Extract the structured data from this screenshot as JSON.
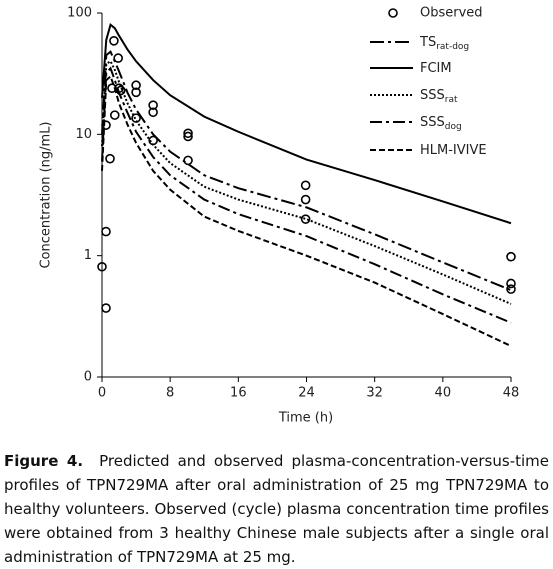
{
  "chart_data": {
    "type": "line",
    "log_y": true,
    "color": "#000000",
    "xlabel": "Time (h)",
    "ylabel": "Concentration (ng/mL)",
    "xlim": [
      0,
      48
    ],
    "xticks": [
      0,
      8,
      16,
      24,
      32,
      40,
      48
    ],
    "ylim": [
      0.1,
      100
    ],
    "yticks": [
      {
        "value": 0.1,
        "label": "0"
      },
      1,
      10,
      100
    ],
    "observed": {
      "name": "Observed",
      "x": [
        0,
        0.47,
        0.47,
        0.47,
        0.94,
        1.17,
        1.4,
        1.5,
        1.9,
        2.0,
        2.2,
        4.0,
        4.0,
        4.0,
        6.0,
        6.0,
        6.0,
        10.1,
        10.1,
        10.1,
        23.9,
        23.9,
        23.9,
        48,
        48,
        48
      ],
      "y": [
        0.81,
        1.58,
        0.37,
        11.9,
        6.3,
        24,
        59,
        14.4,
        42.5,
        24,
        23,
        25.4,
        22.2,
        13.6,
        17.4,
        15.2,
        8.9,
        10.2,
        9.6,
        6.1,
        3.8,
        2.9,
        2.0,
        0.98,
        0.59,
        0.53
      ]
    },
    "x": [
      0,
      0.5,
      1,
      1.5,
      2,
      3,
      4,
      6,
      8,
      12,
      16,
      24,
      32,
      40,
      48
    ],
    "series": [
      {
        "name": "TS",
        "subscript": "rat-dog",
        "dash": "14 4 3 4",
        "values": [
          10,
          45,
          48,
          40,
          33,
          22,
          16,
          10,
          7.2,
          4.6,
          3.6,
          2.5,
          1.5,
          0.88,
          0.52
        ]
      },
      {
        "name": "FCIM",
        "dash": "none",
        "values": [
          20,
          60,
          80,
          75,
          65,
          50,
          40,
          28,
          21,
          14,
          10.5,
          6.2,
          4.2,
          2.8,
          1.85
        ]
      },
      {
        "name": "SSS",
        "subscript": "rat",
        "dash": "2 2",
        "values": [
          8,
          38,
          40,
          34,
          27,
          18,
          13,
          8.2,
          5.8,
          3.7,
          2.9,
          2.0,
          1.2,
          0.7,
          0.4
        ]
      },
      {
        "name": "SSS",
        "subscript": "dog",
        "dash": "12 4 3 4",
        "values": [
          6,
          32,
          35,
          28,
          22,
          15,
          10.5,
          6.5,
          4.6,
          2.9,
          2.2,
          1.45,
          0.85,
          0.48,
          0.28
        ]
      },
      {
        "name": "HLM-IVIVE",
        "dash": "6 3",
        "values": [
          5,
          28,
          30,
          24,
          18,
          12,
          8.5,
          5,
          3.5,
          2.1,
          1.6,
          1.0,
          0.6,
          0.33,
          0.18
        ]
      }
    ]
  },
  "caption": {
    "label": "Figure 4.",
    "text": "Predicted and observed plasma-concentration-versus-time profiles of TPN729MA after oral administration of 25 mg TPN729MA to healthy volunteers.  Observed (cycle) plasma concentration time profiles were obtained from 3 healthy Chinese male subjects after a single oral administration of TPN729MA at 25 mg."
  }
}
